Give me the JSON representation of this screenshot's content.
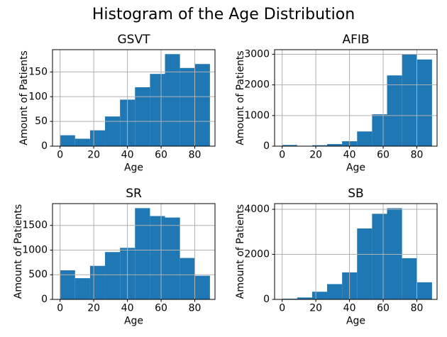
{
  "figure": {
    "title": "Histogram of the Age Distribution",
    "background_color": "#ffffff",
    "bar_color": "#1f77b4",
    "grid_color": "#b0b0b0",
    "spine_color": "#000000",
    "text_color": "#000000"
  },
  "chart_data": [
    {
      "type": "bar",
      "title": "GSVT",
      "xlabel": "Age",
      "ylabel": "Amount of Patients",
      "bin_start": 0,
      "bin_width": 8.9,
      "values": [
        22,
        15,
        32,
        60,
        94,
        119,
        146,
        186,
        158,
        166
      ],
      "xticks": [
        0,
        20,
        40,
        60,
        80
      ],
      "yticks": [
        0,
        50,
        100,
        150
      ],
      "xlim": [
        -4.5,
        92
      ],
      "ylim": [
        0,
        195
      ],
      "grid": true,
      "legend": null
    },
    {
      "type": "bar",
      "title": "AFIB",
      "xlabel": "Age",
      "ylabel": "Amount of Patients",
      "bin_start": 0,
      "bin_width": 8.9,
      "values": [
        38,
        8,
        30,
        68,
        160,
        480,
        1040,
        2310,
        3000,
        2830
      ],
      "xticks": [
        0,
        20,
        40,
        60,
        80
      ],
      "yticks": [
        0,
        1000,
        2000,
        3000
      ],
      "xlim": [
        -4.5,
        92
      ],
      "ylim": [
        0,
        3150
      ],
      "grid": true,
      "legend": null
    },
    {
      "type": "bar",
      "title": "SR",
      "xlabel": "Age",
      "ylabel": "Amount of Patients",
      "bin_start": 0,
      "bin_width": 8.9,
      "values": [
        590,
        430,
        680,
        960,
        1045,
        1850,
        1690,
        1660,
        840,
        480
      ],
      "xticks": [
        0,
        20,
        40,
        60,
        80
      ],
      "yticks": [
        0,
        500,
        1000,
        1500
      ],
      "xlim": [
        -4.5,
        92
      ],
      "ylim": [
        0,
        1942
      ],
      "grid": true,
      "legend": null
    },
    {
      "type": "bar",
      "title": "SB",
      "xlabel": "Age",
      "ylabel": "Amount of Patients",
      "bin_start": 0,
      "bin_width": 8.9,
      "values": [
        30,
        85,
        340,
        680,
        1200,
        3150,
        3800,
        4050,
        1830,
        760
      ],
      "xticks": [
        0,
        20,
        40,
        60,
        80
      ],
      "yticks": [
        0,
        2000,
        4000
      ],
      "xlim": [
        -4.5,
        92
      ],
      "ylim": [
        0,
        4253
      ],
      "grid": true,
      "legend": null
    }
  ]
}
